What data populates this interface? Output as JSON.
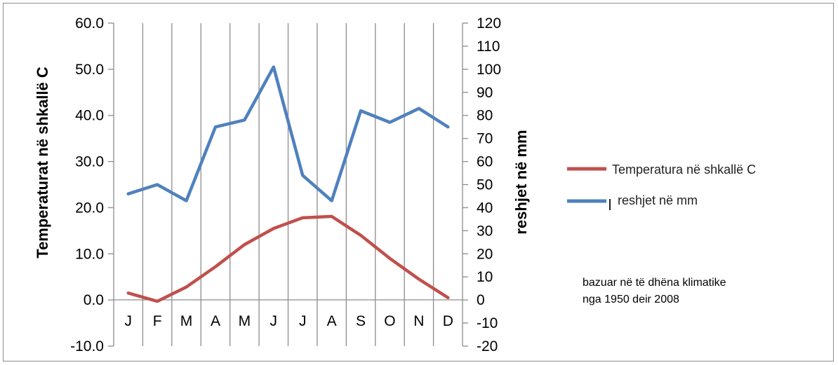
{
  "chart_data": {
    "type": "line",
    "categories": [
      "J",
      "F",
      "M",
      "A",
      "M",
      "J",
      "J",
      "A",
      "S",
      "O",
      "N",
      "D"
    ],
    "y_left": {
      "label": "Temperaturat në shkallë C",
      "range": [
        -10,
        60
      ],
      "ticks": [
        "-10.0",
        "0.0",
        "10.0",
        "20.0",
        "30.0",
        "40.0",
        "50.0",
        "60.0"
      ]
    },
    "y_right": {
      "label": "reshjet në mm",
      "range": [
        -20,
        120
      ],
      "ticks": [
        "-20",
        "-10",
        "0",
        "10",
        "20",
        "30",
        "40",
        "50",
        "60",
        "70",
        "80",
        "90",
        "100",
        "110",
        "120"
      ]
    },
    "series": [
      {
        "name": "Temperatura në shkallë C",
        "axis": "left",
        "color": "#c0504d",
        "values": [
          1.5,
          -0.3,
          2.8,
          7.2,
          12.0,
          15.5,
          17.8,
          18.1,
          14.0,
          9.0,
          4.5,
          0.5
        ]
      },
      {
        "name": "reshjet në mm",
        "axis": "right",
        "color": "#4f81bd",
        "values": [
          46,
          50,
          43,
          75,
          78,
          101,
          54,
          43,
          82,
          77,
          83,
          75
        ]
      }
    ],
    "grid": "vertical",
    "legend_position": "right",
    "annotation": [
      "bazuar në të dhëna klimatike",
      "nga 1950  deir 2008"
    ]
  }
}
